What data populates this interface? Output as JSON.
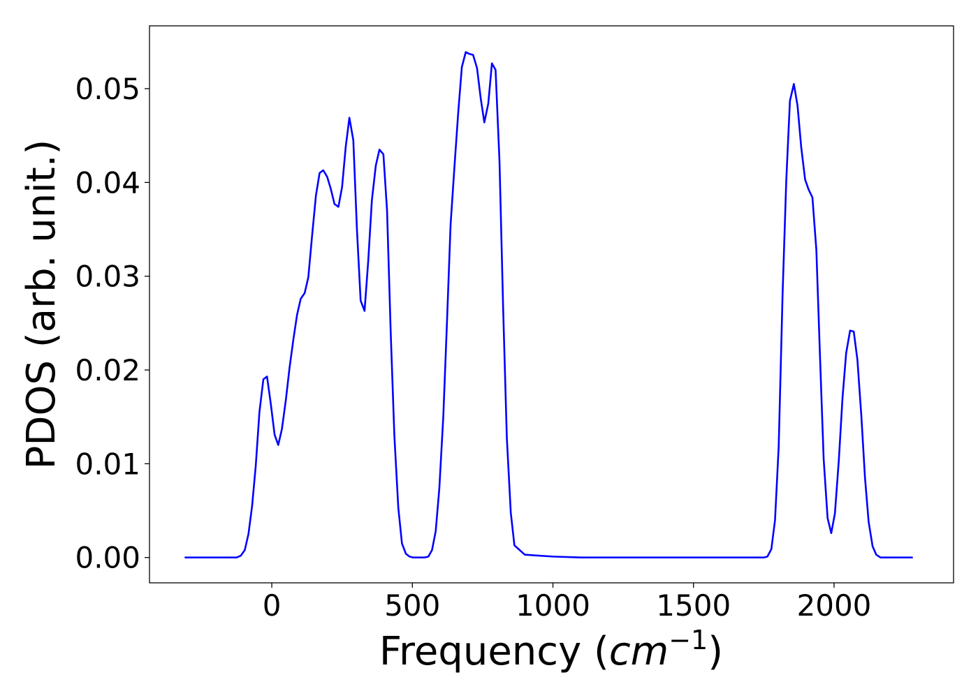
{
  "chart_data": {
    "type": "line",
    "xlabel": "Frequency (",
    "xlabel_math": "cm",
    "xlabel_sup": "−1",
    "xlabel_close": ")",
    "ylabel": "PDOS (arb. unit.)",
    "xlim": [
      -435,
      2425
    ],
    "ylim": [
      -0.0027,
      0.0567
    ],
    "xticks": [
      0,
      500,
      1000,
      1500,
      2000
    ],
    "xtick_labels": [
      "0",
      "500",
      "1000",
      "1500",
      "2000"
    ],
    "yticks": [
      0.0,
      0.01,
      0.02,
      0.03,
      0.04,
      0.05
    ],
    "ytick_labels": [
      "0.00",
      "0.01",
      "0.02",
      "0.03",
      "0.04",
      "0.05"
    ],
    "grid": false,
    "series": [
      {
        "color": "#0000ff",
        "x": [
          -310,
          -200,
          -150,
          -125,
          -110,
          -96,
          -83,
          -70,
          -57,
          -44,
          -30,
          -17,
          -4,
          10,
          23,
          36,
          50,
          63,
          77,
          90,
          103,
          117,
          130,
          143,
          157,
          170,
          183,
          197,
          210,
          223,
          237,
          250,
          263,
          276,
          290,
          303,
          316,
          330,
          343,
          356,
          370,
          383,
          397,
          410,
          423,
          436,
          450,
          463,
          477,
          490,
          503,
          516,
          530,
          543,
          557,
          570,
          583,
          596,
          610,
          623,
          636,
          650,
          663,
          676,
          690,
          703,
          716,
          730,
          743,
          756,
          770,
          783,
          796,
          810,
          823,
          836,
          850,
          863,
          900,
          1000,
          1100,
          1200,
          1300,
          1400,
          1500,
          1600,
          1700,
          1735,
          1750,
          1763,
          1777,
          1790,
          1803,
          1817,
          1830,
          1843,
          1857,
          1870,
          1883,
          1897,
          1910,
          1923,
          1937,
          1950,
          1963,
          1977,
          1990,
          2003,
          2017,
          2030,
          2043,
          2057,
          2070,
          2083,
          2097,
          2110,
          2123,
          2137,
          2150,
          2165,
          2200,
          2280
        ],
        "y": [
          0.0,
          0.0,
          0.0,
          0.0,
          0.0002,
          0.0008,
          0.0025,
          0.0055,
          0.0098,
          0.0155,
          0.019,
          0.0193,
          0.0165,
          0.0131,
          0.012,
          0.0137,
          0.0168,
          0.0202,
          0.0233,
          0.0259,
          0.0276,
          0.0282,
          0.0299,
          0.0342,
          0.0386,
          0.041,
          0.0413,
          0.0406,
          0.0393,
          0.0377,
          0.0374,
          0.0395,
          0.0438,
          0.0469,
          0.0445,
          0.0349,
          0.0274,
          0.0263,
          0.0316,
          0.0381,
          0.0418,
          0.0435,
          0.043,
          0.037,
          0.024,
          0.013,
          0.0053,
          0.0015,
          0.0004,
          0.0001,
          0.0,
          0.0,
          0.0,
          0.0,
          0.0001,
          0.0008,
          0.0028,
          0.0074,
          0.015,
          0.025,
          0.0355,
          0.0418,
          0.0474,
          0.0523,
          0.0539,
          0.0537,
          0.0536,
          0.0522,
          0.049,
          0.0464,
          0.0484,
          0.0527,
          0.052,
          0.0422,
          0.0265,
          0.0128,
          0.0048,
          0.0013,
          0.0003,
          0.0001,
          0.0,
          0.0,
          0.0,
          0.0,
          0.0,
          0.0,
          0.0,
          0.0,
          0.0,
          0.0001,
          0.0009,
          0.004,
          0.0118,
          0.0282,
          0.0402,
          0.0487,
          0.0505,
          0.0482,
          0.0438,
          0.0403,
          0.0392,
          0.0384,
          0.0328,
          0.0214,
          0.0105,
          0.0042,
          0.0026,
          0.0047,
          0.0104,
          0.017,
          0.0218,
          0.0242,
          0.0241,
          0.0211,
          0.0151,
          0.0085,
          0.0038,
          0.0012,
          0.0003,
          0.0,
          0.0,
          0.0
        ]
      }
    ]
  }
}
